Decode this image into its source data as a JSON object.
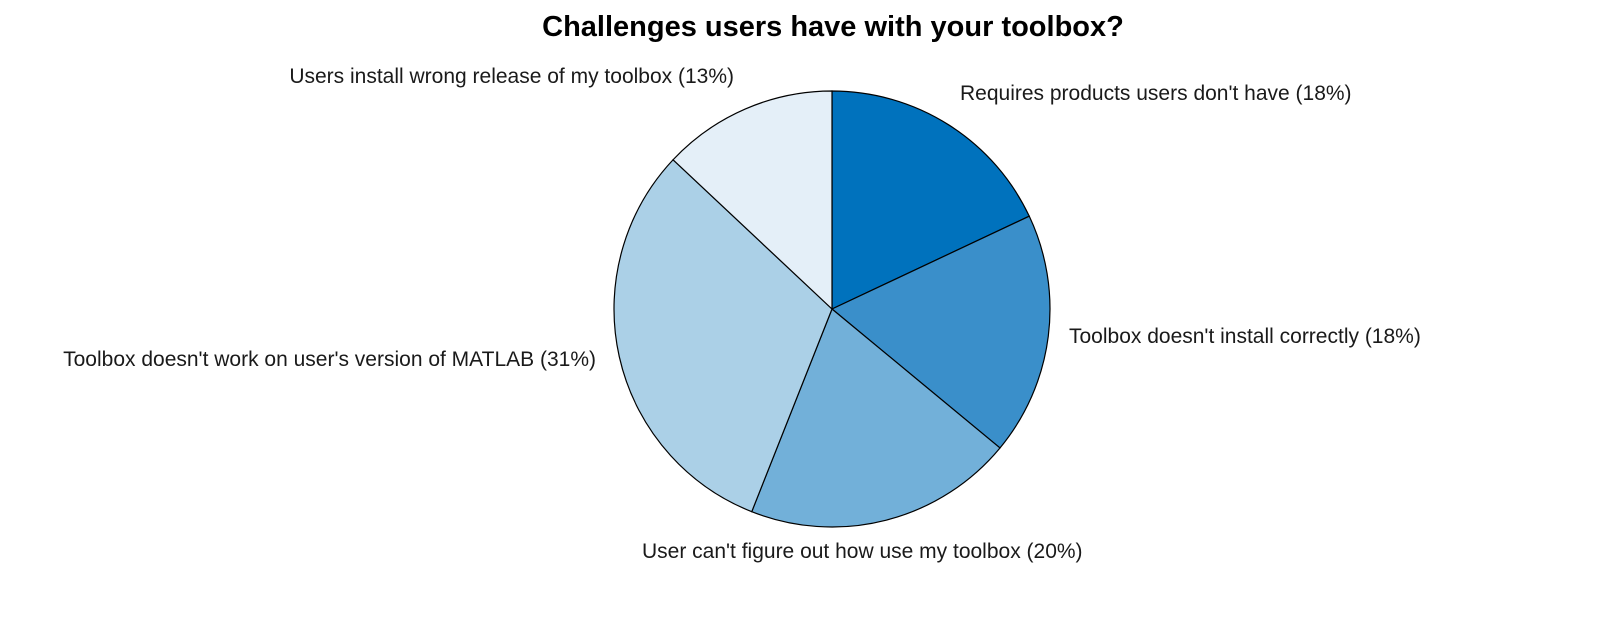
{
  "chart_data": {
    "type": "pie",
    "title": "Challenges users have with your toolbox?",
    "start": "12 o'clock",
    "direction": "clockwise",
    "slices": [
      {
        "label": "Requires products users don't have (18%)",
        "value": 18,
        "color": "#0072bd"
      },
      {
        "label": "Toolbox doesn't install correctly (18%)",
        "value": 18,
        "color": "#3a8fca"
      },
      {
        "label": "User can't figure out how use my toolbox (20%)",
        "value": 20,
        "color": "#72b0d9"
      },
      {
        "label": "Toolbox doesn't work on user's version of MATLAB (31%)",
        "value": 31,
        "color": "#abd0e7"
      },
      {
        "label": "Users install wrong release of my toolbox (13%)",
        "value": 13,
        "color": "#e4eff8"
      }
    ]
  }
}
